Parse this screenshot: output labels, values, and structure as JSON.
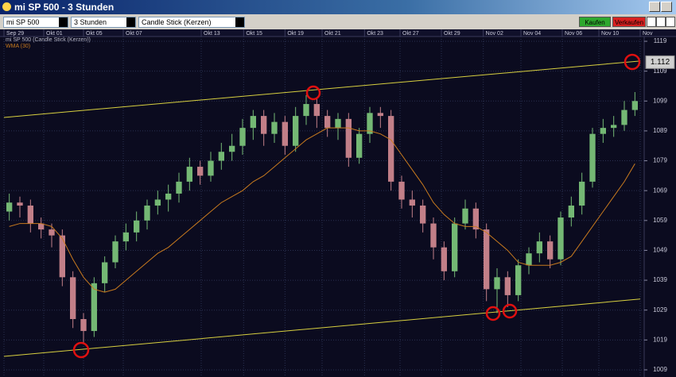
{
  "window": {
    "title": "mi SP 500 - 3 Stunden"
  },
  "toolbar": {
    "symbol": "mi SP 500",
    "interval": "3 Stunden",
    "chart_style": "Candle Stick (Kerzen)",
    "buy": "Kaufen",
    "sell": "Verkaufen"
  },
  "chart_data": {
    "type": "candlestick",
    "candles": {
      "name": "mi SP 500 (Candle Stick (Kerzen))",
      "up_color": "#74b874",
      "down_color": "#c27f88",
      "x": [
        0,
        1,
        2,
        3,
        4,
        5,
        6,
        7,
        8,
        9,
        10,
        11,
        12,
        13,
        14,
        15,
        16,
        17,
        18,
        19,
        20,
        21,
        22,
        23,
        24,
        25,
        26,
        27,
        28,
        29,
        30,
        31,
        32,
        33,
        34,
        35,
        36,
        37,
        38,
        39,
        40,
        41,
        42,
        43,
        44,
        45,
        46,
        47,
        48,
        49,
        50,
        51,
        52,
        53,
        54,
        55,
        56,
        57,
        58,
        59
      ],
      "open": [
        1062,
        1065,
        1064,
        1058,
        1056,
        1054,
        1040,
        1026,
        1022,
        1038,
        1045,
        1052,
        1055,
        1059,
        1064,
        1066,
        1068,
        1072,
        1077,
        1074,
        1079,
        1082,
        1084,
        1090,
        1094,
        1088,
        1092,
        1084,
        1094,
        1098,
        1094,
        1090,
        1093,
        1080,
        1088,
        1095,
        1094,
        1072,
        1066,
        1064,
        1058,
        1050,
        1042,
        1058,
        1063,
        1056,
        1036,
        1040,
        1034,
        1044,
        1048,
        1052,
        1046,
        1060,
        1064,
        1072,
        1088,
        1090,
        1091,
        1096
      ],
      "high": [
        1068,
        1067,
        1066,
        1060,
        1058,
        1056,
        1042,
        1028,
        1040,
        1047,
        1054,
        1058,
        1062,
        1066,
        1069,
        1071,
        1075,
        1080,
        1079,
        1082,
        1085,
        1088,
        1093,
        1096,
        1096,
        1095,
        1094,
        1097,
        1101,
        1100,
        1096,
        1095,
        1095,
        1090,
        1097,
        1097,
        1096,
        1074,
        1069,
        1066,
        1060,
        1052,
        1060,
        1066,
        1065,
        1058,
        1043,
        1042,
        1046,
        1050,
        1055,
        1054,
        1062,
        1067,
        1075,
        1090,
        1093,
        1094,
        1099,
        1102
      ],
      "low": [
        1059,
        1060,
        1055,
        1053,
        1050,
        1037,
        1023,
        1018,
        1020,
        1035,
        1043,
        1049,
        1052,
        1056,
        1061,
        1062,
        1065,
        1069,
        1071,
        1072,
        1076,
        1079,
        1081,
        1086,
        1084,
        1085,
        1081,
        1082,
        1091,
        1090,
        1087,
        1086,
        1077,
        1078,
        1085,
        1090,
        1069,
        1063,
        1060,
        1055,
        1046,
        1039,
        1040,
        1056,
        1053,
        1032,
        1028,
        1030,
        1032,
        1041,
        1045,
        1043,
        1044,
        1057,
        1061,
        1070,
        1085,
        1087,
        1089,
        1094
      ],
      "close": [
        1065,
        1064,
        1058,
        1056,
        1054,
        1040,
        1026,
        1022,
        1038,
        1045,
        1052,
        1055,
        1059,
        1064,
        1066,
        1068,
        1072,
        1077,
        1074,
        1079,
        1082,
        1084,
        1090,
        1094,
        1088,
        1092,
        1084,
        1094,
        1098,
        1094,
        1090,
        1093,
        1080,
        1088,
        1095,
        1094,
        1072,
        1066,
        1064,
        1058,
        1050,
        1042,
        1058,
        1063,
        1056,
        1036,
        1040,
        1034,
        1044,
        1048,
        1052,
        1046,
        1060,
        1064,
        1072,
        1088,
        1090,
        1091,
        1096,
        1099
      ]
    },
    "wma": {
      "name": "WMA (30)",
      "color": "#c87a1e",
      "values": [
        1057,
        1058,
        1058,
        1058,
        1057,
        1053,
        1046,
        1040,
        1036,
        1035,
        1036,
        1039,
        1042,
        1045,
        1048,
        1050,
        1053,
        1056,
        1059,
        1062,
        1065,
        1067,
        1069,
        1072,
        1074,
        1077,
        1080,
        1083,
        1086,
        1088,
        1090,
        1090,
        1090,
        1089,
        1089,
        1088,
        1086,
        1081,
        1076,
        1071,
        1065,
        1061,
        1058,
        1057,
        1057,
        1055,
        1052,
        1049,
        1045,
        1044,
        1044,
        1044,
        1045,
        1047,
        1052,
        1057,
        1062,
        1067,
        1072,
        1078
      ]
    },
    "trendlines": [
      {
        "color": "#d8d040",
        "x": [
          -0.5,
          59.5
        ],
        "values": [
          1093.5,
          1112.4
        ]
      },
      {
        "color": "#d8d040",
        "x": [
          -0.5,
          59.5
        ],
        "values": [
          1013.5,
          1032.7
        ]
      }
    ],
    "price_marker": {
      "value": 1112,
      "label": "1.112"
    },
    "xlim": [
      -0.5,
      59.5
    ],
    "xticks": [
      {
        "value": -0.5,
        "label": "Sep 29"
      },
      {
        "value": 3.25,
        "label": "Okt 01"
      },
      {
        "value": 7,
        "label": "Okt 05"
      },
      {
        "value": 10.75,
        "label": "Okt 07"
      },
      {
        "value": 18.1,
        "label": "Okt 13"
      },
      {
        "value": 22.1,
        "label": "Okt 15"
      },
      {
        "value": 26,
        "label": "Okt 19"
      },
      {
        "value": 29.5,
        "label": "Okt 21"
      },
      {
        "value": 33.5,
        "label": "Okt 23"
      },
      {
        "value": 36.85,
        "label": "Okt 27"
      },
      {
        "value": 40.75,
        "label": "Okt 29"
      },
      {
        "value": 44.7,
        "label": "Nov 02"
      },
      {
        "value": 48.25,
        "label": "Nov 04"
      },
      {
        "value": 52.15,
        "label": "Nov 06"
      },
      {
        "value": 55.6,
        "label": "Nov 10"
      },
      {
        "value": 59.5,
        "label": "Nov"
      }
    ],
    "ylim": [
      1006.6,
      1120.6
    ],
    "yticks": [
      1009,
      1019,
      1029,
      1039,
      1049,
      1059,
      1069,
      1079,
      1089,
      1099,
      1109,
      1119
    ],
    "grid": true
  }
}
